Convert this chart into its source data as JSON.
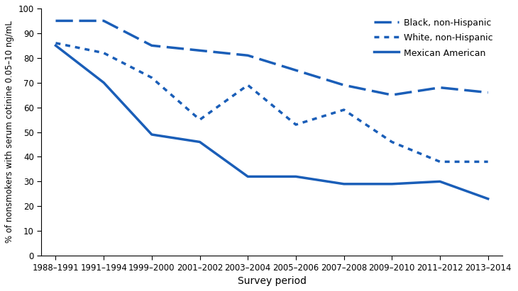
{
  "x_labels": [
    "1988–1991",
    "1991–1994",
    "1999–2000",
    "2001–2002",
    "2003–2004",
    "2005–2006",
    "2007–2008",
    "2009–2010",
    "2011–2012",
    "2013–2014"
  ],
  "black_non_hispanic": [
    95,
    95,
    85,
    83,
    81,
    75,
    69,
    65,
    68,
    66
  ],
  "white_non_hispanic": [
    86,
    82,
    72,
    55,
    69,
    53,
    59,
    46,
    38,
    38
  ],
  "mexican_american": [
    85,
    70,
    49,
    46,
    32,
    32,
    29,
    29,
    30,
    23
  ],
  "line_color": "#1a5eb8",
  "ylabel": "% of nonsmokers with serum cotinine 0.05–10 ng/mL",
  "xlabel": "Survey period",
  "ylim": [
    0,
    100
  ],
  "yticks": [
    0,
    10,
    20,
    30,
    40,
    50,
    60,
    70,
    80,
    90,
    100
  ],
  "legend_labels": [
    "Black, non-Hispanic",
    "White, non-Hispanic",
    "Mexican American"
  ],
  "figsize": [
    7.3,
    4.11
  ],
  "dpi": 100
}
